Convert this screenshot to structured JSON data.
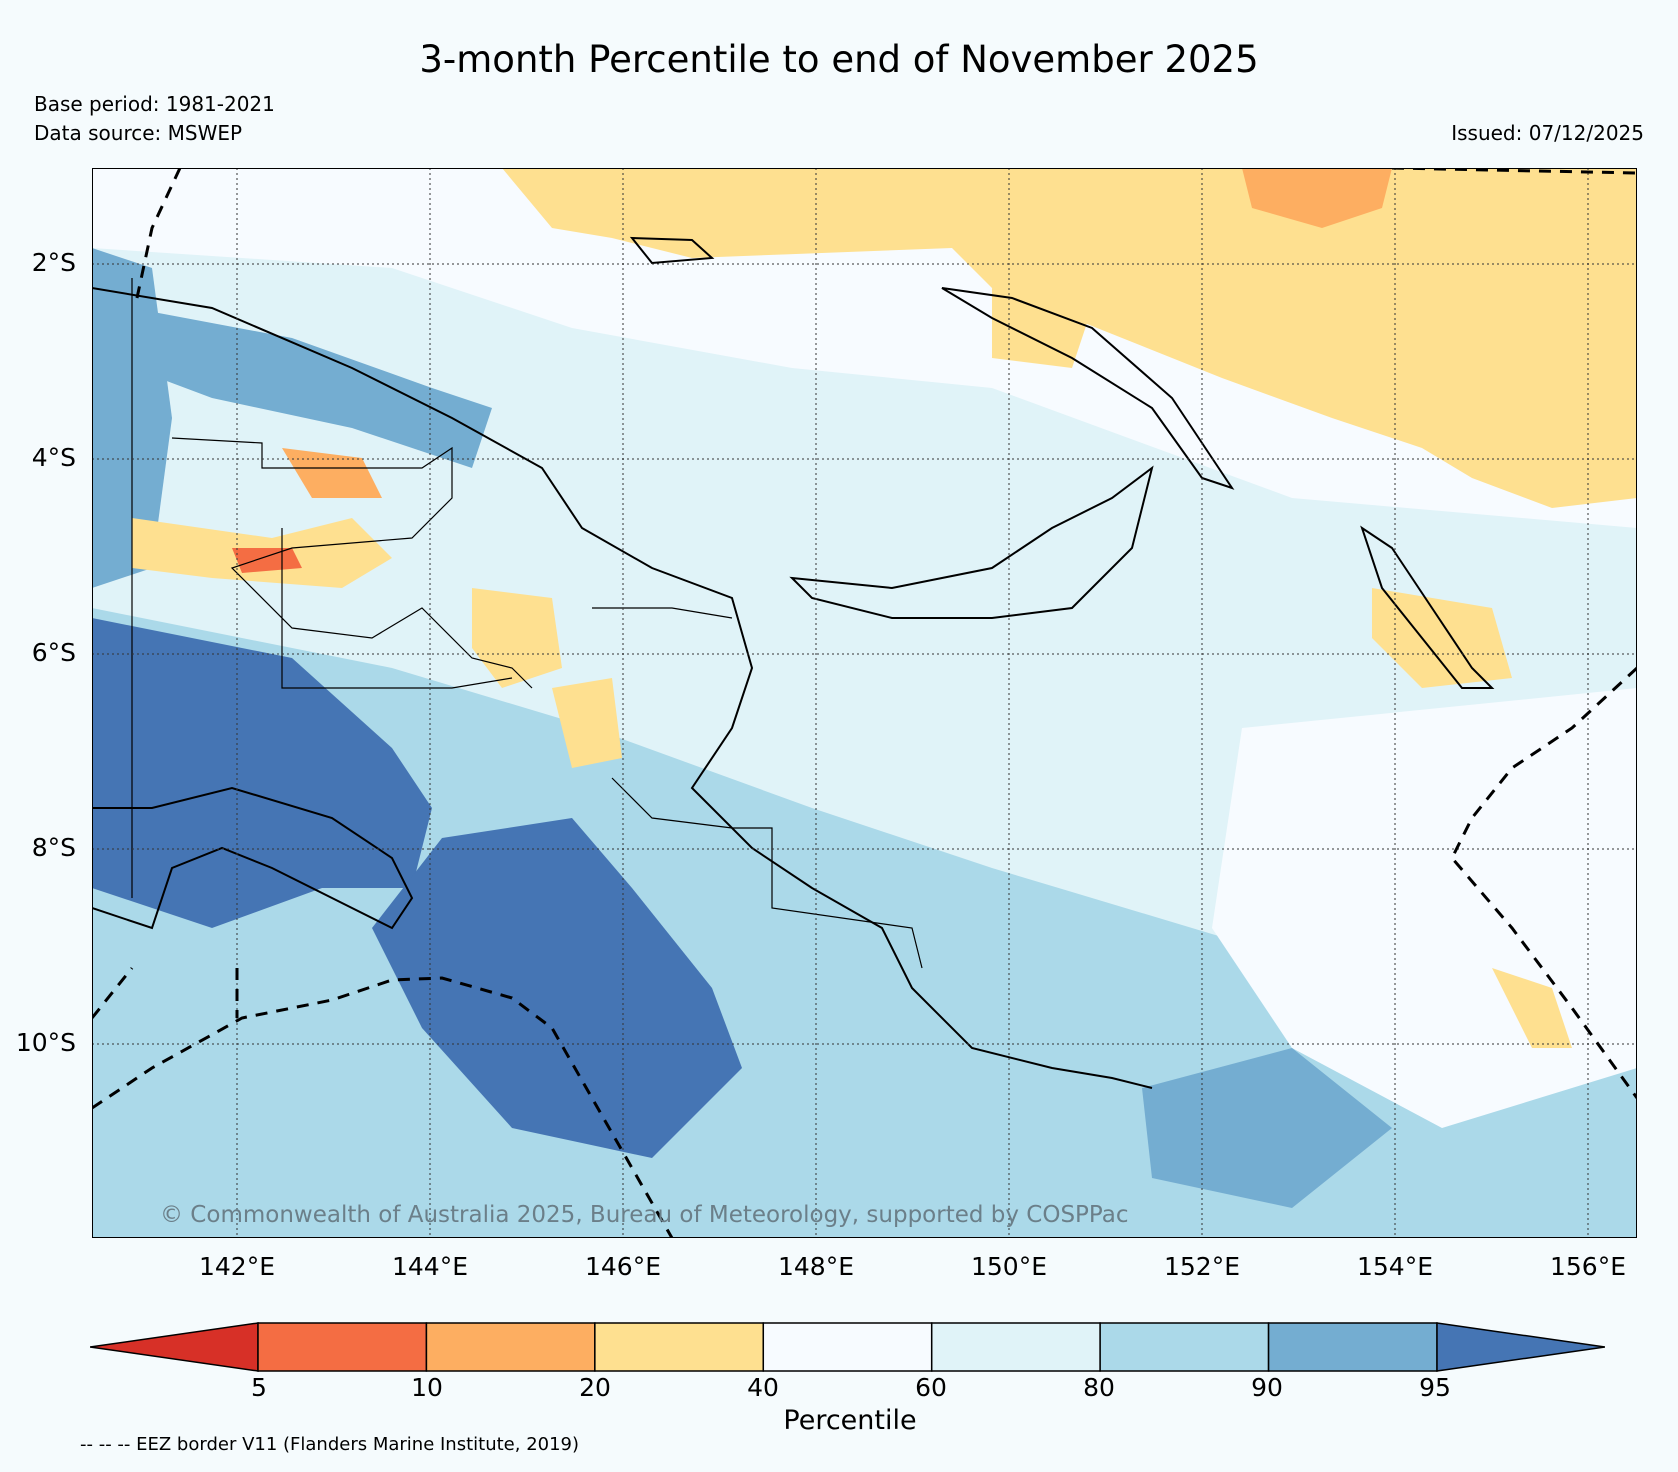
{
  "header": {
    "title": "3-month Percentile to end of November 2025",
    "base_period": "Base period: 1981-2021",
    "data_source": "Data source: MSWEP",
    "issued": "Issued: 07/12/2025"
  },
  "map": {
    "copyright": "© Commonwealth of Australia 2025, Bureau of Meteorology, supported by COSPPac",
    "lat_labels": [
      "2°S",
      "4°S",
      "6°S",
      "8°S",
      "10°S"
    ],
    "lon_labels": [
      "142°E",
      "144°E",
      "146°E",
      "148°E",
      "150°E",
      "152°E",
      "154°E",
      "156°E"
    ]
  },
  "colorbar": {
    "label": "Percentile",
    "ticks": [
      "5",
      "10",
      "20",
      "40",
      "60",
      "80",
      "90",
      "95"
    ],
    "colors": [
      "#d73027",
      "#f46d43",
      "#fdae61",
      "#fee090",
      "#f7fbff",
      "#e0f3f8",
      "#abd9e9",
      "#74add1",
      "#4575b4"
    ]
  },
  "footer": {
    "eez_note": "-- -- -- EEZ border V11 (Flanders Marine Institute, 2019)"
  }
}
